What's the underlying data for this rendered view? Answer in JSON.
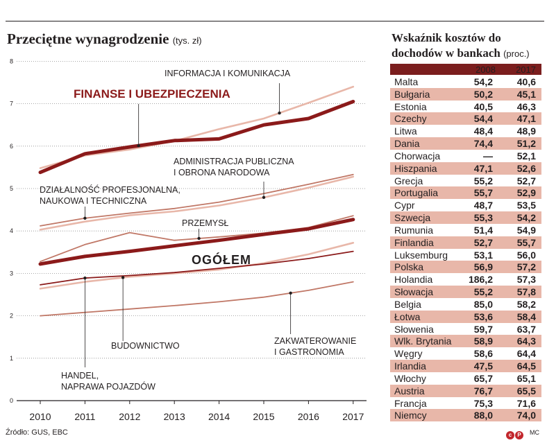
{
  "left": {
    "title": "Przeciętne wynagrodzenie",
    "unit": "(tys. zł)"
  },
  "source": "Źródło: GUS, EBC",
  "credit": "MC",
  "chart_data": {
    "type": "line",
    "title": "Przeciętne wynagrodzenie",
    "ylabel": "(tys. zł)",
    "x": [
      "2010",
      "2011",
      "2012",
      "2013",
      "2014",
      "2015",
      "2016",
      "2017"
    ],
    "ylim": [
      0,
      8
    ],
    "yticks": [
      0,
      1,
      2,
      3,
      4,
      5,
      6,
      7,
      8
    ],
    "series": [
      {
        "name": "FINANSE I UBEZPIECZENIA",
        "color": "#8b1a1a",
        "weight": "bold",
        "values": [
          5.38,
          5.82,
          5.98,
          6.13,
          6.17,
          6.5,
          6.65,
          7.05
        ]
      },
      {
        "name": "INFORMACJA I KOMUNIKACJA",
        "color": "#e8b7a9",
        "weight": "light",
        "values": [
          5.48,
          5.78,
          5.92,
          6.12,
          6.4,
          6.65,
          7.02,
          7.4
        ]
      },
      {
        "name": "ADMINISTRACJA PUBLICZNA I OBRONA NARODOWA",
        "color": "#e8b7a9",
        "weight": "light",
        "values": [
          4.03,
          4.22,
          4.37,
          4.46,
          4.6,
          4.79,
          5.02,
          5.28
        ]
      },
      {
        "name": "DZIAŁALNOŚĆ PROFESJONALNA, NAUKOWA I TECHNICZNA",
        "color": "#c07766",
        "weight": "thin",
        "values": [
          4.12,
          4.3,
          4.42,
          4.53,
          4.68,
          4.88,
          5.1,
          5.33
        ]
      },
      {
        "name": "PRZEMYSŁ",
        "color": "#c07766",
        "weight": "thin",
        "values": [
          3.28,
          3.68,
          3.96,
          3.78,
          3.86,
          3.95,
          4.08,
          4.36
        ]
      },
      {
        "name": "OGÓŁEM",
        "color": "#8b1a1a",
        "weight": "bold",
        "values": [
          3.22,
          3.4,
          3.52,
          3.65,
          3.78,
          3.92,
          4.05,
          4.27
        ]
      },
      {
        "name": "HANDEL, NAPRAWA POJAZDÓW",
        "color": "#8b1a1a",
        "weight": "thin",
        "values": [
          2.73,
          2.89,
          2.95,
          3.02,
          3.12,
          3.22,
          3.35,
          3.52
        ]
      },
      {
        "name": "BUDOWNICTWO",
        "color": "#e8b7a9",
        "weight": "light",
        "values": [
          2.64,
          2.8,
          2.92,
          3.0,
          3.09,
          3.24,
          3.45,
          3.72
        ]
      },
      {
        "name": "ZAKWATEROWANIE I GASTRONOMIA",
        "color": "#c07766",
        "weight": "thin",
        "values": [
          2.0,
          2.08,
          2.16,
          2.24,
          2.33,
          2.44,
          2.6,
          2.8
        ]
      }
    ],
    "labels": [
      {
        "text": [
          "FINANSE I UBEZPIECZENIA"
        ],
        "style": "finanse"
      },
      {
        "text": [
          "INFORMACJA I KOMUNIKACJA"
        ],
        "style": "normal"
      },
      {
        "text": [
          "ADMINISTRACJA PUBLICZNA",
          "I OBRONA NARODOWA"
        ],
        "style": "normal"
      },
      {
        "text": [
          "DZIAŁALNOŚĆ PROFESJONALNA,",
          "NAUKOWA I TECHNICZNA"
        ],
        "style": "normal"
      },
      {
        "text": [
          "PRZEMYSŁ"
        ],
        "style": "normal"
      },
      {
        "text": [
          "OGÓŁEM"
        ],
        "style": "ogolem"
      },
      {
        "text": [
          "HANDEL,",
          "NAPRAWA POJAZDÓW"
        ],
        "style": "normal"
      },
      {
        "text": [
          "BUDOWNICTWO"
        ],
        "style": "normal"
      },
      {
        "text": [
          "ZAKWATEROWANIE",
          "I GASTRONOMIA"
        ],
        "style": "normal"
      }
    ]
  },
  "table": {
    "title_line1": "Wskaźnik kosztów do",
    "title_line2": "dochodów w bankach",
    "unit": "(proc.)",
    "col1": "2008",
    "col2": "2017",
    "rows": [
      {
        "country": "Malta",
        "v2008": "54,2",
        "v2017": "40,6"
      },
      {
        "country": "Bułgaria",
        "v2008": "50,2",
        "v2017": "45,1"
      },
      {
        "country": "Estonia",
        "v2008": "40,5",
        "v2017": "46,3"
      },
      {
        "country": "Czechy",
        "v2008": "54,4",
        "v2017": "47,1"
      },
      {
        "country": "Litwa",
        "v2008": "48,4",
        "v2017": "48,9"
      },
      {
        "country": "Dania",
        "v2008": "74,4",
        "v2017": "51,2"
      },
      {
        "country": "Chorwacja",
        "v2008": "—",
        "v2017": "52,1"
      },
      {
        "country": "Hiszpania",
        "v2008": "47,1",
        "v2017": "52,6"
      },
      {
        "country": "Grecja",
        "v2008": "55,2",
        "v2017": "52,7"
      },
      {
        "country": "Portugalia",
        "v2008": "55,7",
        "v2017": "52,9"
      },
      {
        "country": "Cypr",
        "v2008": "48,7",
        "v2017": "53,5"
      },
      {
        "country": "Szwecja",
        "v2008": "55,3",
        "v2017": "54,2"
      },
      {
        "country": "Rumunia",
        "v2008": "51,4",
        "v2017": "54,9"
      },
      {
        "country": "Finlandia",
        "v2008": "52,7",
        "v2017": "55,7"
      },
      {
        "country": "Luksemburg",
        "v2008": "53,1",
        "v2017": "56,0"
      },
      {
        "country": "Polska",
        "v2008": "56,9",
        "v2017": "57,2"
      },
      {
        "country": "Holandia",
        "v2008": "186,2",
        "v2017": "57,3"
      },
      {
        "country": "Słowacja",
        "v2008": "55,2",
        "v2017": "57,8"
      },
      {
        "country": "Belgia",
        "v2008": "85,0",
        "v2017": "58,2"
      },
      {
        "country": "Łotwa",
        "v2008": "53,6",
        "v2017": "58,4"
      },
      {
        "country": "Słowenia",
        "v2008": "59,7",
        "v2017": "63,7"
      },
      {
        "country": "Wlk. Brytania",
        "v2008": "58,9",
        "v2017": "64,3"
      },
      {
        "country": "Węgry",
        "v2008": "58,6",
        "v2017": "64,4"
      },
      {
        "country": "Irlandia",
        "v2008": "47,5",
        "v2017": "64,5"
      },
      {
        "country": "Włochy",
        "v2008": "65,7",
        "v2017": "65,1"
      },
      {
        "country": "Austria",
        "v2008": "76,7",
        "v2017": "65,5"
      },
      {
        "country": "Francja",
        "v2008": "75,3",
        "v2017": "71,6"
      },
      {
        "country": "Niemcy",
        "v2008": "88,0",
        "v2017": "74,0"
      }
    ]
  }
}
